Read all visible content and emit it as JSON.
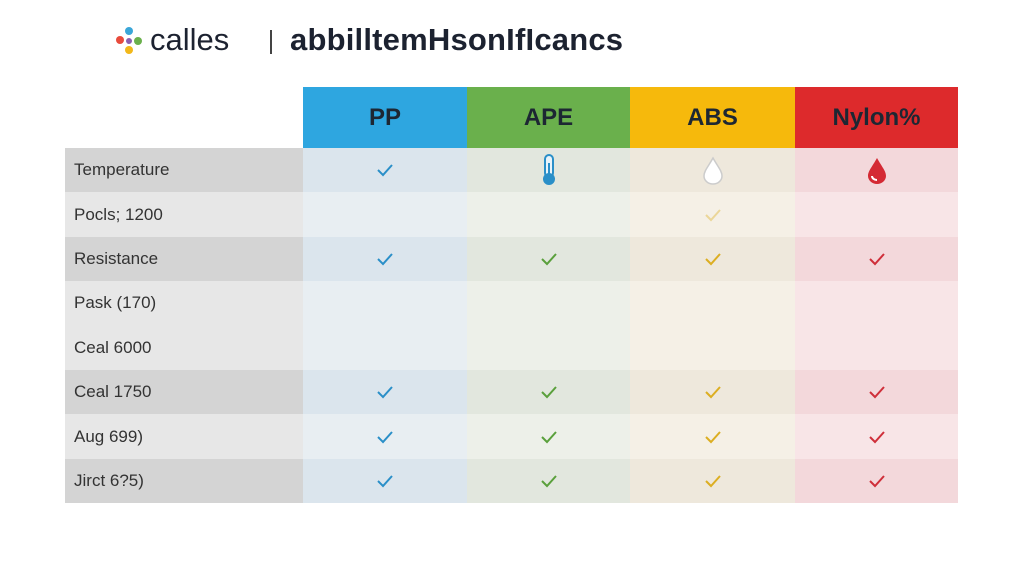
{
  "header": {
    "brand": "calles",
    "title": "abbilltemHsonIfIcancs"
  },
  "table": {
    "columns": [
      "PP",
      "APE",
      "ABS",
      "Nylon%"
    ],
    "rows": [
      "Temperature",
      "Pocls; 1200",
      "Resistance",
      "Pask (170)",
      "Ceal 6000",
      "Ceal 1750",
      "Aug 699)",
      "Jirct 6?5)"
    ]
  }
}
